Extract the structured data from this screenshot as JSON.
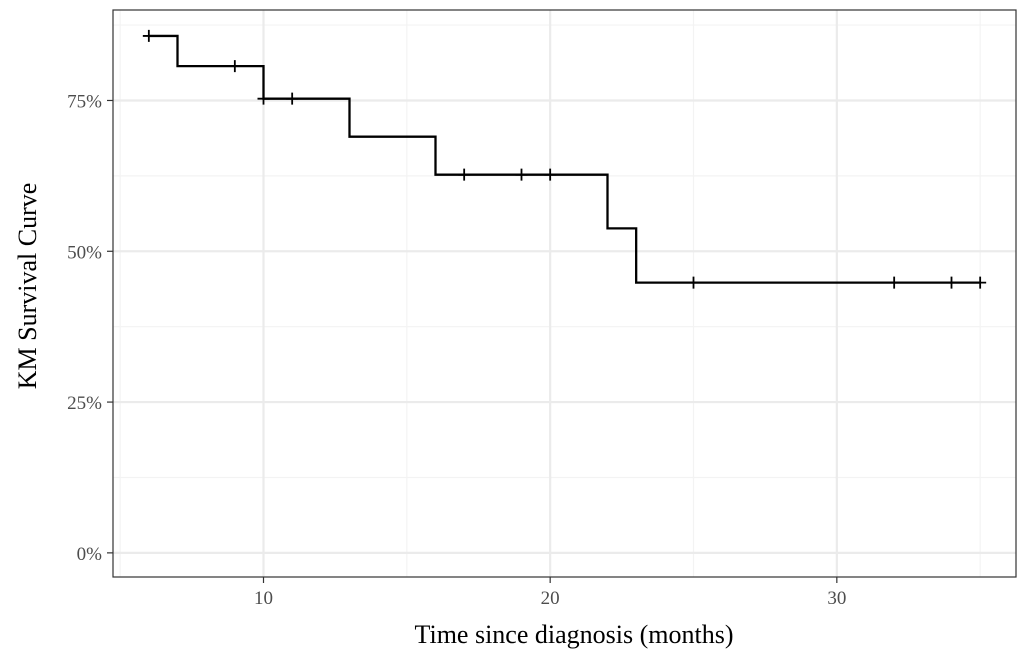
{
  "chart_data": {
    "type": "step",
    "title": "",
    "xlabel": "Time since diagnosis (months)",
    "ylabel": "KM Survival Curve",
    "xlim": [
      4.75,
      36.25
    ],
    "ylim": [
      -0.04,
      0.9
    ],
    "x_ticks": [
      10,
      20,
      30
    ],
    "x_tick_labels": [
      "10",
      "20",
      "30"
    ],
    "y_ticks": [
      0,
      0.25,
      0.5,
      0.75
    ],
    "y_tick_labels": [
      "0%",
      "25%",
      "50%",
      "75%"
    ],
    "grid": true,
    "legend": "none",
    "series": [
      {
        "steps": [
          {
            "x": 6,
            "y": 0.857
          },
          {
            "x": 7,
            "y": 0.807
          },
          {
            "x": 10,
            "y": 0.753
          },
          {
            "x": 13,
            "y": 0.69
          },
          {
            "x": 16,
            "y": 0.627
          },
          {
            "x": 22,
            "y": 0.538
          },
          {
            "x": 23,
            "y": 0.448
          },
          {
            "x": 35,
            "y": 0.448
          }
        ],
        "censored": [
          {
            "x": 6,
            "y": 0.857
          },
          {
            "x": 9,
            "y": 0.807
          },
          {
            "x": 10,
            "y": 0.753
          },
          {
            "x": 11,
            "y": 0.753
          },
          {
            "x": 17,
            "y": 0.627
          },
          {
            "x": 19,
            "y": 0.627
          },
          {
            "x": 20,
            "y": 0.627
          },
          {
            "x": 25,
            "y": 0.448
          },
          {
            "x": 32,
            "y": 0.448
          },
          {
            "x": 34,
            "y": 0.448
          },
          {
            "x": 35,
            "y": 0.448
          }
        ]
      }
    ],
    "colors": {
      "line": "#000000",
      "grid_major": "#ebebeb",
      "grid_minor": "#f3f3f3",
      "panel_border": "#333333",
      "tick_text": "#4d4d4d"
    }
  }
}
